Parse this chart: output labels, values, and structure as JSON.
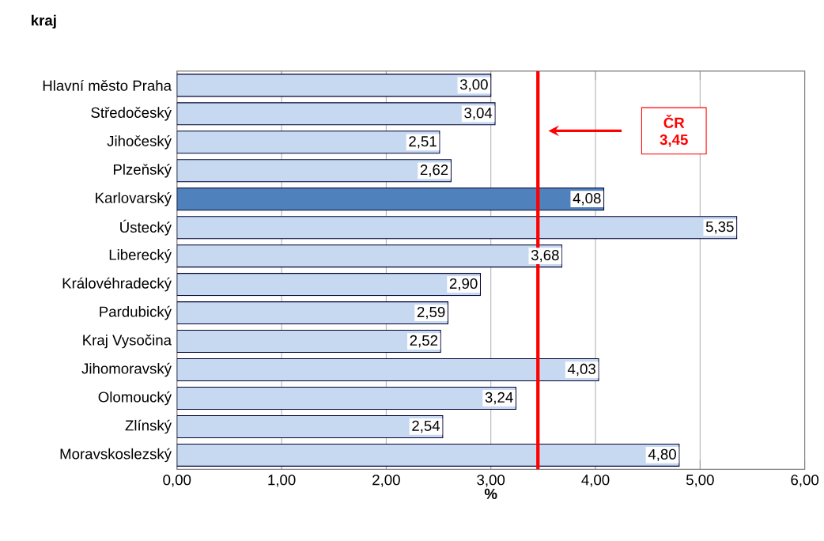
{
  "chart_data": {
    "type": "bar",
    "orientation": "horizontal",
    "ylabel": "kraj",
    "xlabel": "%",
    "categories": [
      "Hlavní město Praha",
      "Středočeský",
      "Jihočeský",
      "Plzeňský",
      "Karlovarský",
      "Ústecký",
      "Liberecký",
      "Královéhradecký",
      "Pardubický",
      "Kraj Vysočina",
      "Jihomoravský",
      "Olomoucký",
      "Zlínský",
      "Moravskoslezský"
    ],
    "values": [
      3.0,
      3.04,
      2.51,
      2.62,
      4.08,
      5.35,
      3.68,
      2.9,
      2.59,
      2.52,
      4.03,
      3.24,
      2.54,
      4.8
    ],
    "value_labels": [
      "3,00",
      "3,04",
      "2,51",
      "2,62",
      "4,08",
      "5,35",
      "3,68",
      "2,90",
      "2,59",
      "2,52",
      "4,03",
      "3,24",
      "2,54",
      "4,80"
    ],
    "colors": [
      "#c6d9f1",
      "#c6d9f1",
      "#c6d9f1",
      "#c6d9f1",
      "#4f81bd",
      "#c6d9f1",
      "#c6d9f1",
      "#c6d9f1",
      "#c6d9f1",
      "#c6d9f1",
      "#c6d9f1",
      "#c6d9f1",
      "#c6d9f1",
      "#c6d9f1"
    ],
    "xlim": [
      0,
      6
    ],
    "xticks": [
      {
        "value": 0,
        "label": "0,00"
      },
      {
        "value": 1,
        "label": "1,00"
      },
      {
        "value": 2,
        "label": "2,00"
      },
      {
        "value": 3,
        "label": "3,00"
      },
      {
        "value": 4,
        "label": "4,00"
      },
      {
        "value": 5,
        "label": "5,00"
      },
      {
        "value": 6,
        "label": "6,00"
      }
    ],
    "ref_lines": [
      {
        "axis": "x",
        "value": 3.45,
        "label": "ČR 3,45",
        "color": "#ff0000"
      }
    ],
    "grid": "x"
  }
}
